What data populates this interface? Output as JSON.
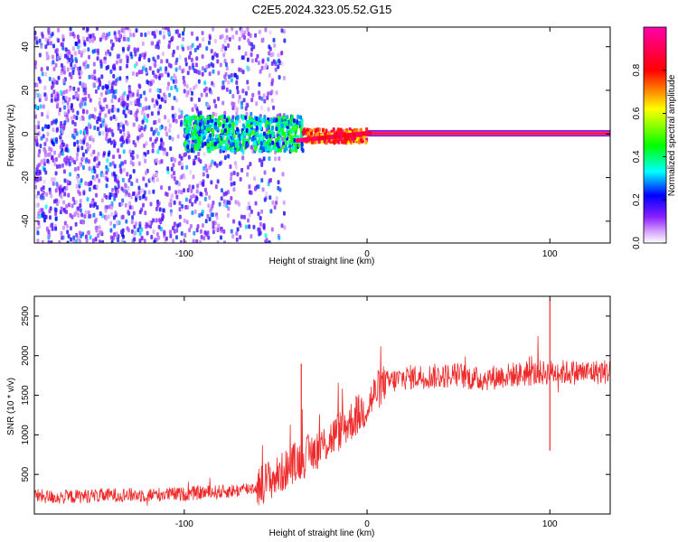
{
  "figure": {
    "title": "C2E5.2024.323.05.52.G15"
  },
  "chart_data": [
    {
      "type": "heatmap",
      "title": "C2E5.2024.323.05.52.G15",
      "xlabel": "Height of straight line (km)",
      "ylabel": "Frequency (Hz)",
      "xlim": [
        -182,
        133
      ],
      "ylim": [
        -50,
        49
      ],
      "xticks": [
        -100,
        0,
        100
      ],
      "yticks": [
        -40,
        -20,
        0,
        20,
        40
      ],
      "grid": false,
      "colorbar": {
        "label": "Normalized spectral amplitude",
        "range": [
          0,
          1
        ],
        "ticks": [
          0.0,
          0.2,
          0.4,
          0.6,
          0.8
        ],
        "tick_labels": [
          "0.0",
          "0.2",
          "0.4",
          "0.6",
          "0.8"
        ],
        "colormap": [
          "#ffffff",
          "#d9a8ff",
          "#7a00ff",
          "#0000ff",
          "#00ffff",
          "#00ff00",
          "#ffff00",
          "#ff0000",
          "#ff00aa"
        ]
      },
      "regions": [
        {
          "description_x_range": [
            -182,
            -45
          ],
          "frequency_range": [
            -50,
            49
          ],
          "amplitude": [
            0.05,
            0.3
          ]
        },
        {
          "description_x_range": [
            -100,
            -35
          ],
          "frequency_range": [
            -8,
            8
          ],
          "amplitude": [
            0.2,
            0.5
          ]
        },
        {
          "description_x_range": [
            -35,
            0
          ],
          "frequency_range": [
            -4,
            2
          ],
          "amplitude": [
            0.6,
            0.95
          ]
        },
        {
          "description_x_range": [
            0,
            133
          ],
          "frequency_range": [
            0,
            0.5
          ],
          "amplitude": [
            0.85,
            0.95
          ]
        }
      ]
    },
    {
      "type": "line",
      "xlabel": "Height of straight line (km)",
      "ylabel": "SNR (10 * v/v)",
      "xlim": [
        -182,
        133
      ],
      "ylim": [
        0,
        2750
      ],
      "xticks": [
        -100,
        0,
        100
      ],
      "yticks": [
        500,
        1000,
        1500,
        2000,
        2500
      ],
      "grid": false,
      "series": [
        {
          "color": "#ee2a2a",
          "x": [
            -182,
            -170,
            -160,
            -150,
            -140,
            -130,
            -120,
            -110,
            -100,
            -90,
            -80,
            -70,
            -60,
            -55,
            -50,
            -45,
            -40,
            -35,
            -30,
            -25,
            -20,
            -15,
            -10,
            -5,
            0,
            5,
            10,
            20,
            30,
            40,
            50,
            60,
            70,
            80,
            90,
            100,
            110,
            120,
            133
          ],
          "y": [
            230,
            210,
            220,
            230,
            240,
            240,
            240,
            250,
            250,
            270,
            280,
            300,
            340,
            420,
            460,
            550,
            650,
            700,
            780,
            850,
            950,
            1050,
            1150,
            1250,
            1350,
            1550,
            1650,
            1720,
            1740,
            1740,
            1760,
            1700,
            1730,
            1760,
            1770,
            1790,
            1790,
            1790,
            1800
          ]
        }
      ],
      "annotations": [
        {
          "x": -36,
          "y": 1900,
          "text": "spike"
        },
        {
          "x": 100,
          "y": 2700,
          "text": "spike"
        },
        {
          "x": 100,
          "y": 800,
          "text": "dip"
        }
      ]
    }
  ]
}
